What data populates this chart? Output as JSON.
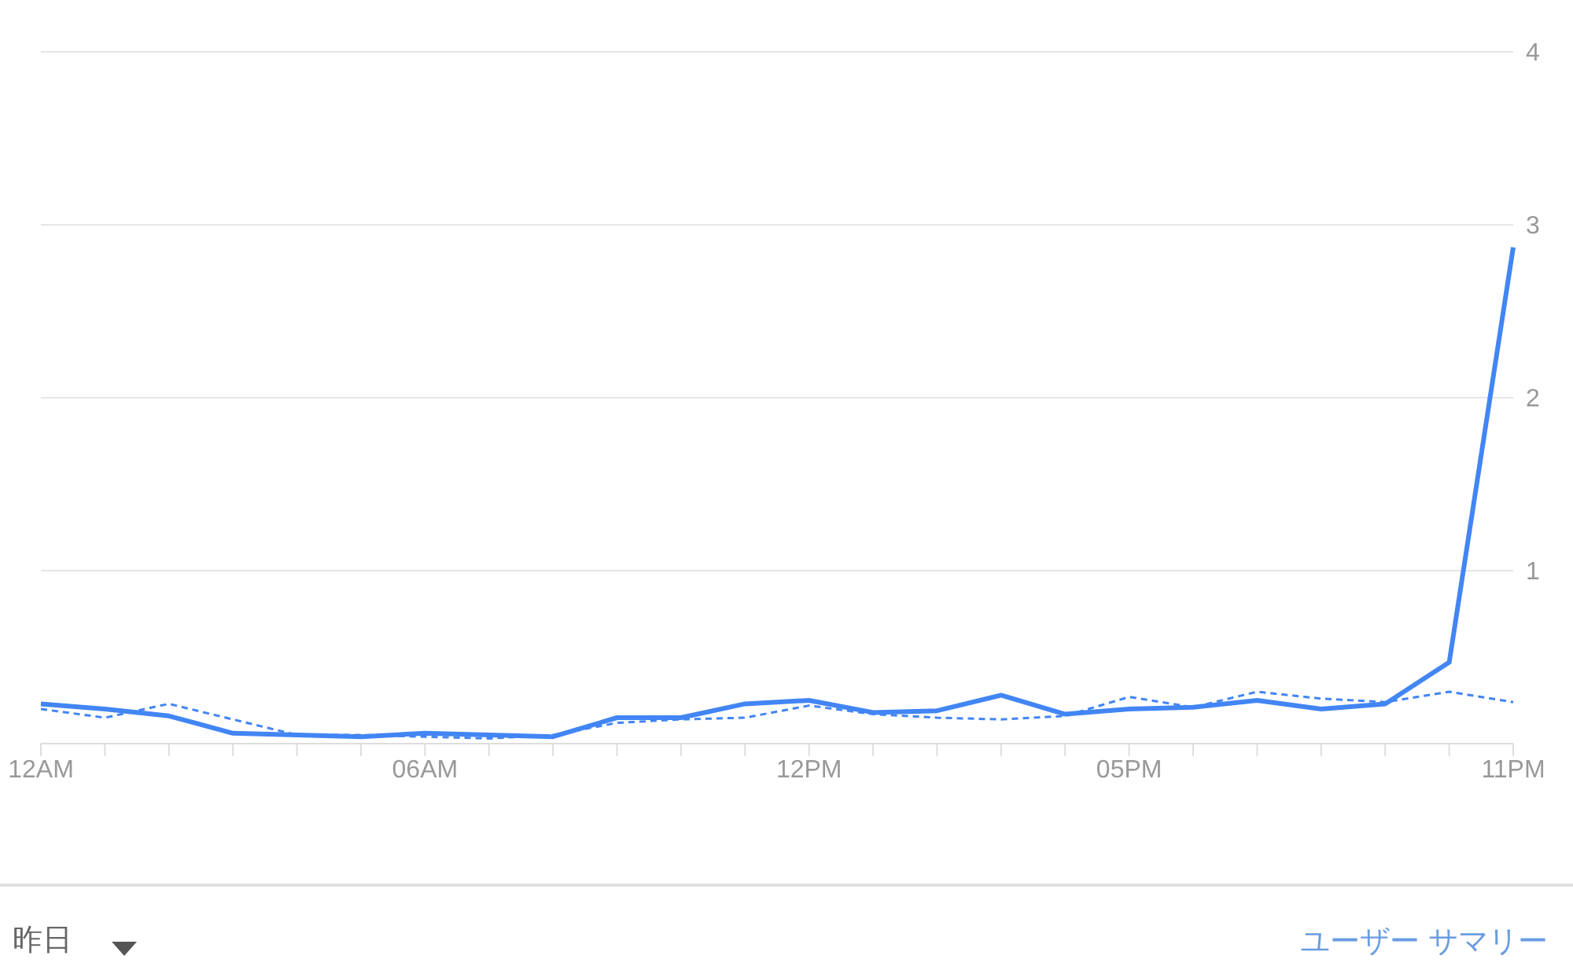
{
  "chart_data": {
    "type": "line",
    "categories": [
      "12AM",
      null,
      null,
      null,
      null,
      null,
      "06AM",
      null,
      null,
      null,
      null,
      null,
      "12PM",
      null,
      null,
      null,
      null,
      "05PM",
      null,
      null,
      null,
      null,
      null,
      "11PM"
    ],
    "series": [
      {
        "color": "#4285f4",
        "line_style": "solid",
        "values": [
          0.23,
          0.2,
          0.16,
          0.06,
          0.05,
          0.04,
          0.06,
          0.05,
          0.04,
          0.15,
          0.15,
          0.23,
          0.25,
          0.18,
          0.19,
          0.28,
          0.17,
          0.2,
          0.21,
          0.25,
          0.2,
          0.23,
          0.47,
          2.87
        ]
      },
      {
        "color": "#4285f4",
        "line_style": "dashed",
        "values": [
          0.2,
          0.15,
          0.23,
          0.14,
          0.05,
          0.05,
          0.04,
          0.03,
          0.05,
          0.12,
          0.14,
          0.15,
          0.22,
          0.17,
          0.15,
          0.14,
          0.16,
          0.27,
          0.21,
          0.3,
          0.26,
          0.24,
          0.3,
          0.24
        ]
      }
    ],
    "ylim": [
      0,
      4
    ],
    "yticks": [
      1,
      2,
      3,
      4
    ],
    "grid": "y",
    "marker": "none",
    "annotations": [
      "昨日",
      "ユーザー サマリー"
    ]
  }
}
